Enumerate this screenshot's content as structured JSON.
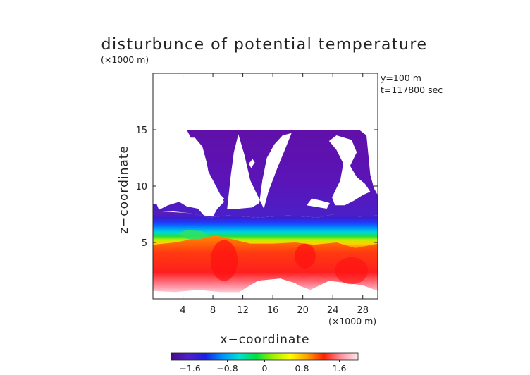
{
  "chart_data": {
    "type": "heatmap",
    "title": "disturbunce of potential temperature",
    "unit_label": "(×1000 m)",
    "annotations": [
      "y=100 m",
      "t=117800 sec"
    ],
    "xlabel": "x−coordinate",
    "ylabel": "z−coordinate",
    "x_unit_label": "(×1000 m)",
    "xlim": [
      0,
      30
    ],
    "ylim": [
      0,
      20
    ],
    "xticks": [
      4,
      8,
      12,
      16,
      20,
      24,
      28
    ],
    "xtick_labels": [
      "4",
      "8",
      "12",
      "16",
      "20",
      "24",
      "28"
    ],
    "yticks": [
      5,
      10,
      15
    ],
    "ytick_labels": [
      "5",
      "10",
      "15"
    ],
    "colorbar": {
      "range": [
        -2,
        2
      ],
      "ticks": [
        -1.6,
        -0.8,
        0,
        0.8,
        1.6
      ],
      "tick_labels": [
        "−1.6",
        "−0.8",
        "0",
        "0.8",
        "1.6"
      ],
      "colormap": [
        "#4a0a8a",
        "#5020c8",
        "#1a20e0",
        "#0090ff",
        "#00e0d0",
        "#00e040",
        "#a0f000",
        "#ffff00",
        "#ffa000",
        "#ff2000",
        "#ff90a0",
        "#ffe8ec"
      ]
    },
    "regions": [
      {
        "name": "upper-negative-region",
        "description_values": {
          "x_range": [
            0,
            30
          ],
          "z_range": [
            6,
            15
          ],
          "value": -1.8
        }
      },
      {
        "name": "transition-band",
        "description_values": {
          "x_range": [
            0,
            30
          ],
          "z_range": [
            4.5,
            7.5
          ],
          "value": 0
        }
      },
      {
        "name": "lower-positive-region",
        "description_values": {
          "x_range": [
            0,
            30
          ],
          "z_range": [
            0.5,
            5
          ],
          "value": 1.2
        }
      }
    ],
    "grid": false,
    "legend": "colorbar-bottom"
  }
}
